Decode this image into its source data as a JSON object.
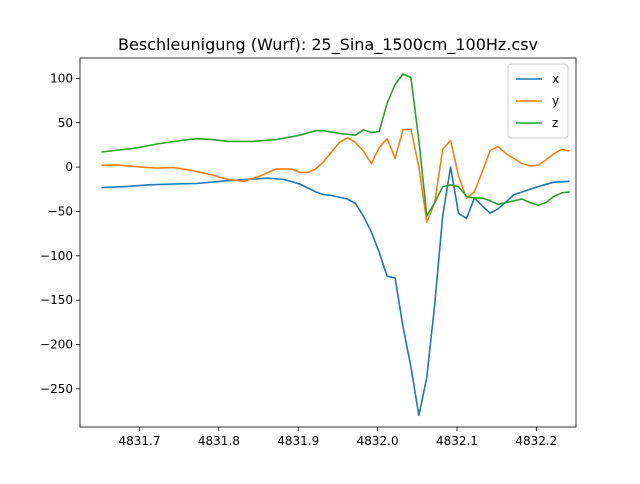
{
  "chart_data": {
    "type": "line",
    "title": "Beschleunigung (Wurf): 25_Sina_1500cm_100Hz.csv",
    "xlabel": "",
    "ylabel": "",
    "xlim": [
      4831.625,
      4832.25
    ],
    "ylim": [
      -293,
      123
    ],
    "xticks": [
      4831.7,
      4831.8,
      4831.9,
      4832.0,
      4832.1,
      4832.2
    ],
    "xtick_labels": [
      "4831.7",
      "4831.8",
      "4831.9",
      "4832.0",
      "4832.1",
      "4832.2"
    ],
    "yticks": [
      100,
      50,
      0,
      -50,
      -100,
      -150,
      -200,
      -250
    ],
    "ytick_labels": [
      "100",
      "50",
      "0",
      "−50",
      "−100",
      "−150",
      "−200",
      "−250"
    ],
    "grid": false,
    "legend": "upper right",
    "series": [
      {
        "name": "x",
        "color": "#1f77b4",
        "points": [
          [
            4831.652,
            -23
          ],
          [
            4831.682,
            -22
          ],
          [
            4831.712,
            -20
          ],
          [
            4831.742,
            -19
          ],
          [
            4831.772,
            -18.5
          ],
          [
            4831.802,
            -16
          ],
          [
            4831.832,
            -14
          ],
          [
            4831.862,
            -12.5
          ],
          [
            4831.882,
            -14
          ],
          [
            4831.902,
            -19
          ],
          [
            4831.922,
            -28
          ],
          [
            4831.932,
            -31
          ],
          [
            4831.942,
            -32
          ],
          [
            4831.962,
            -36
          ],
          [
            4831.972,
            -41
          ],
          [
            4831.982,
            -55
          ],
          [
            4831.992,
            -73
          ],
          [
            4832.002,
            -96
          ],
          [
            4832.012,
            -123
          ],
          [
            4832.022,
            -125
          ],
          [
            4832.032,
            -180
          ],
          [
            4832.042,
            -225
          ],
          [
            4832.052,
            -280
          ],
          [
            4832.062,
            -237
          ],
          [
            4832.072,
            -155
          ],
          [
            4832.082,
            -55
          ],
          [
            4832.092,
            0
          ],
          [
            4832.102,
            -52
          ],
          [
            4832.112,
            -58
          ],
          [
            4832.122,
            -35
          ],
          [
            4832.132,
            -44
          ],
          [
            4832.142,
            -52
          ],
          [
            4832.152,
            -47
          ],
          [
            4832.172,
            -31
          ],
          [
            4832.202,
            -22
          ],
          [
            4832.222,
            -17
          ],
          [
            4832.242,
            -16
          ]
        ]
      },
      {
        "name": "y",
        "color": "#ff7f0e",
        "points": [
          [
            4831.652,
            2
          ],
          [
            4831.672,
            2.5
          ],
          [
            4831.702,
            0
          ],
          [
            4831.722,
            -1
          ],
          [
            4831.742,
            -0.5
          ],
          [
            4831.762,
            -3
          ],
          [
            4831.792,
            -9
          ],
          [
            4831.812,
            -14
          ],
          [
            4831.832,
            -16
          ],
          [
            4831.852,
            -10
          ],
          [
            4831.872,
            -2
          ],
          [
            4831.892,
            -2
          ],
          [
            4831.902,
            -6
          ],
          [
            4831.912,
            -6
          ],
          [
            4831.922,
            -2
          ],
          [
            4831.932,
            6
          ],
          [
            4831.952,
            28
          ],
          [
            4831.962,
            33
          ],
          [
            4831.972,
            28
          ],
          [
            4831.982,
            18
          ],
          [
            4831.992,
            4
          ],
          [
            4832.002,
            22
          ],
          [
            4832.012,
            32
          ],
          [
            4832.022,
            10
          ],
          [
            4832.032,
            42
          ],
          [
            4832.042,
            43
          ],
          [
            4832.052,
            0
          ],
          [
            4832.062,
            -62
          ],
          [
            4832.072,
            -40
          ],
          [
            4832.082,
            20
          ],
          [
            4832.092,
            30
          ],
          [
            4832.102,
            -10
          ],
          [
            4832.112,
            -35
          ],
          [
            4832.122,
            -28
          ],
          [
            4832.132,
            -5
          ],
          [
            4832.142,
            19
          ],
          [
            4832.152,
            23
          ],
          [
            4832.162,
            15
          ],
          [
            4832.182,
            4
          ],
          [
            4832.192,
            1.5
          ],
          [
            4832.202,
            2
          ],
          [
            4832.212,
            8
          ],
          [
            4832.222,
            15
          ],
          [
            4832.232,
            20
          ],
          [
            4832.242,
            18
          ]
        ]
      },
      {
        "name": "z",
        "color": "#2ca02c",
        "points": [
          [
            4831.652,
            17
          ],
          [
            4831.692,
            21
          ],
          [
            4831.722,
            26
          ],
          [
            4831.752,
            30
          ],
          [
            4831.772,
            32
          ],
          [
            4831.792,
            31
          ],
          [
            4831.812,
            29
          ],
          [
            4831.842,
            29
          ],
          [
            4831.872,
            31
          ],
          [
            4831.902,
            36
          ],
          [
            4831.922,
            41
          ],
          [
            4831.932,
            41
          ],
          [
            4831.952,
            38
          ],
          [
            4831.972,
            36
          ],
          [
            4831.982,
            42
          ],
          [
            4831.992,
            39
          ],
          [
            4832.002,
            40
          ],
          [
            4832.012,
            72
          ],
          [
            4832.022,
            93
          ],
          [
            4832.032,
            105
          ],
          [
            4832.042,
            101
          ],
          [
            4832.052,
            30
          ],
          [
            4832.062,
            -55
          ],
          [
            4832.072,
            -40
          ],
          [
            4832.082,
            -22
          ],
          [
            4832.092,
            -20
          ],
          [
            4832.102,
            -22
          ],
          [
            4832.112,
            -33
          ],
          [
            4832.122,
            -35
          ],
          [
            4832.132,
            -35
          ],
          [
            4832.142,
            -38
          ],
          [
            4832.152,
            -42
          ],
          [
            4832.172,
            -38
          ],
          [
            4832.182,
            -36
          ],
          [
            4832.192,
            -40
          ],
          [
            4832.202,
            -43
          ],
          [
            4832.212,
            -40
          ],
          [
            4832.222,
            -33
          ],
          [
            4832.232,
            -29
          ],
          [
            4832.242,
            -28
          ]
        ]
      }
    ]
  }
}
